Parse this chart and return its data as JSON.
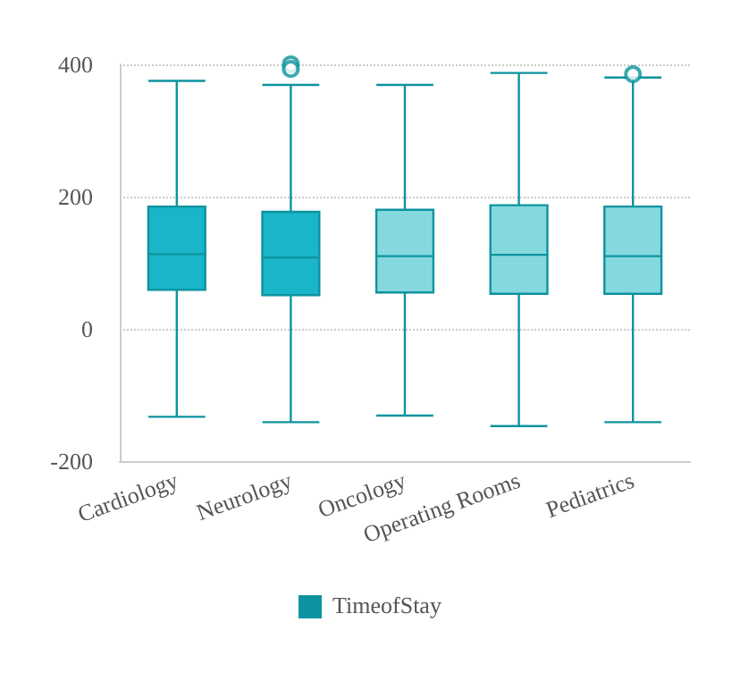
{
  "chart_data": {
    "type": "box",
    "categories": [
      "Cardiology",
      "Neurology",
      "Oncology",
      "Operating Rooms",
      "Pediatrics"
    ],
    "series": [
      {
        "name": "TimeofStay",
        "color": "#0d939f",
        "colors": [
          "#1ab5c8",
          "#1ab5c8",
          "#86d8df",
          "#86d8df",
          "#86d8df"
        ],
        "boxes": [
          {
            "low": -133,
            "q1": 59,
            "median": 113,
            "q3": 185,
            "high": 375
          },
          {
            "low": -141,
            "q1": 51,
            "median": 108,
            "q3": 177,
            "high": 369,
            "outliers": [
              400,
              393
            ]
          },
          {
            "low": -131,
            "q1": 55,
            "median": 110,
            "q3": 180,
            "high": 369
          },
          {
            "low": -147,
            "q1": 53,
            "median": 112,
            "q3": 187,
            "high": 387
          },
          {
            "low": -141,
            "q1": 53,
            "median": 110,
            "q3": 185,
            "high": 380,
            "outliers": [
              385
            ]
          }
        ]
      }
    ],
    "ylim": [
      -200,
      400
    ],
    "yticks": [
      -200,
      0,
      200,
      400
    ],
    "grid": "y",
    "legend": "bottom"
  }
}
